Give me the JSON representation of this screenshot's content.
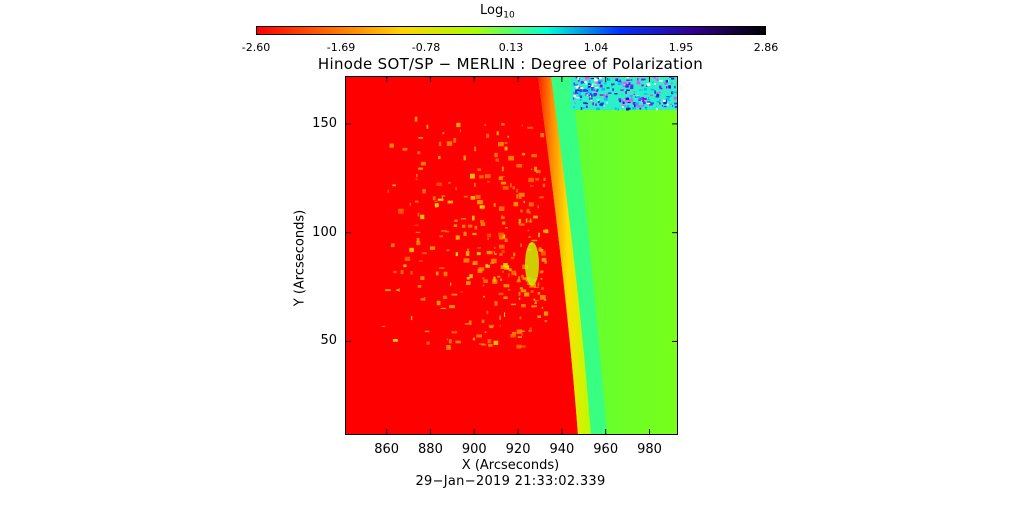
{
  "colorbar": {
    "title": "Log",
    "title_sub": "10",
    "ticks": [
      "-2.60",
      "-1.69",
      "-0.78",
      "0.13",
      "1.04",
      "1.95",
      "2.86"
    ],
    "range": [
      -2.6,
      2.86
    ],
    "colors": [
      "#ff0000",
      "#ff6a00",
      "#ffd400",
      "#a8ff00",
      "#00ffd8",
      "#0030ff",
      "#300090",
      "#000000"
    ]
  },
  "title": "Hinode SOT/SP − MERLIN : Degree of Polarization",
  "timestamp": "29−Jan−2019 21:33:02.339",
  "chart_data": {
    "type": "heatmap",
    "title": "Hinode SOT/SP − MERLIN : Degree of Polarization",
    "xlabel": "X (Arcseconds)",
    "ylabel": "Y (Arcseconds)",
    "xlim": [
      841,
      993
    ],
    "ylim": [
      7,
      172
    ],
    "x_ticks": [
      "860",
      "880",
      "900",
      "920",
      "940",
      "960",
      "980"
    ],
    "y_ticks": [
      "50",
      "100",
      "150"
    ],
    "x_tick_values": [
      860,
      880,
      900,
      920,
      940,
      960,
      980
    ],
    "y_tick_values": [
      50,
      100,
      150
    ],
    "colorbar_label": "Log10",
    "color_range": [
      -2.6,
      2.86
    ],
    "features": {
      "disk_value": -2.6,
      "limb_x": 945,
      "offlimb_value": 0.13
    }
  }
}
